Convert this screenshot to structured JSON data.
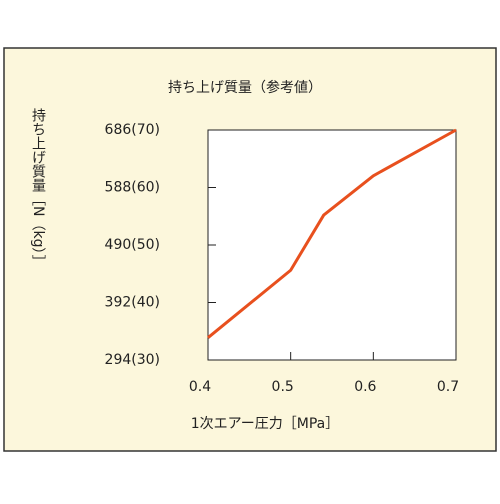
{
  "chart_data": {
    "type": "line",
    "title": "持ち上げ質量（参考値）",
    "x_label": "1次エアー圧力［MPa］",
    "y_label": "持ち上げ質量［N（kg）］",
    "x": [
      0.4,
      0.5,
      0.54,
      0.6,
      0.7
    ],
    "series": [
      {
        "color": "#e8501e",
        "values": [
          332,
          447,
          541,
          608,
          686
        ]
      }
    ],
    "xlim": [
      0.4,
      0.7
    ],
    "xticks": [
      0.4,
      0.5,
      0.6,
      0.7
    ],
    "ylim": [
      294,
      686
    ],
    "yticks": [
      {
        "value": 294,
        "label": "294(30)"
      },
      {
        "value": 392,
        "label": "392(40)"
      },
      {
        "value": 490,
        "label": "490(50)"
      },
      {
        "value": 588,
        "label": "588(60)"
      },
      {
        "value": 686,
        "label": "686(70)"
      }
    ],
    "grid": false
  }
}
